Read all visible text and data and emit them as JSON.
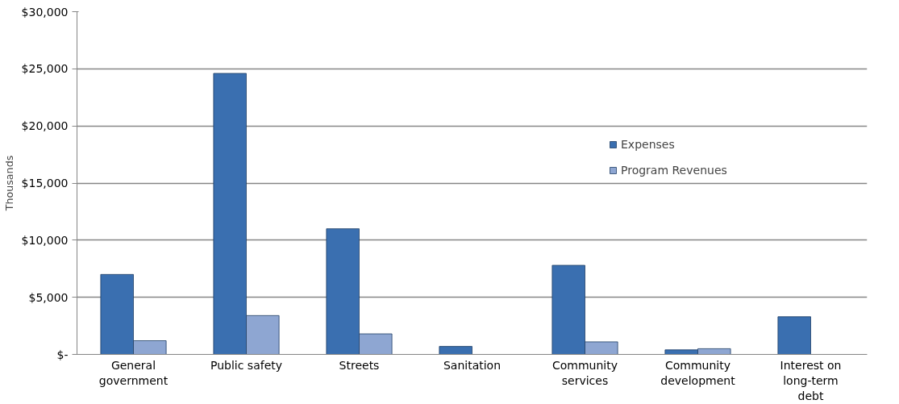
{
  "chart_data": {
    "type": "bar",
    "ylabel": "Thousands",
    "categories": [
      "General government",
      "Public safety",
      "Streets",
      "Sanitation",
      "Community services",
      "Community development",
      "Interest on long-term debt"
    ],
    "series": [
      {
        "name": "Expenses",
        "color": "#3a6fb0",
        "values": [
          7000,
          24600,
          11000,
          700,
          7800,
          400,
          3300
        ]
      },
      {
        "name": "Program Revenues",
        "color": "#8ea6d2",
        "values": [
          1200,
          3400,
          1800,
          null,
          1100,
          500,
          null
        ]
      }
    ],
    "ylim": [
      0,
      30000
    ],
    "yticks": [
      {
        "value": 0,
        "label": "$-"
      },
      {
        "value": 5000,
        "label": "$5,000"
      },
      {
        "value": 10000,
        "label": "$10,000"
      },
      {
        "value": 15000,
        "label": "$15,000"
      },
      {
        "value": 20000,
        "label": "$20,000"
      },
      {
        "value": 25000,
        "label": "$25,000"
      },
      {
        "value": 30000,
        "label": "$30,000"
      }
    ],
    "grid": "y",
    "legend": "top right"
  }
}
